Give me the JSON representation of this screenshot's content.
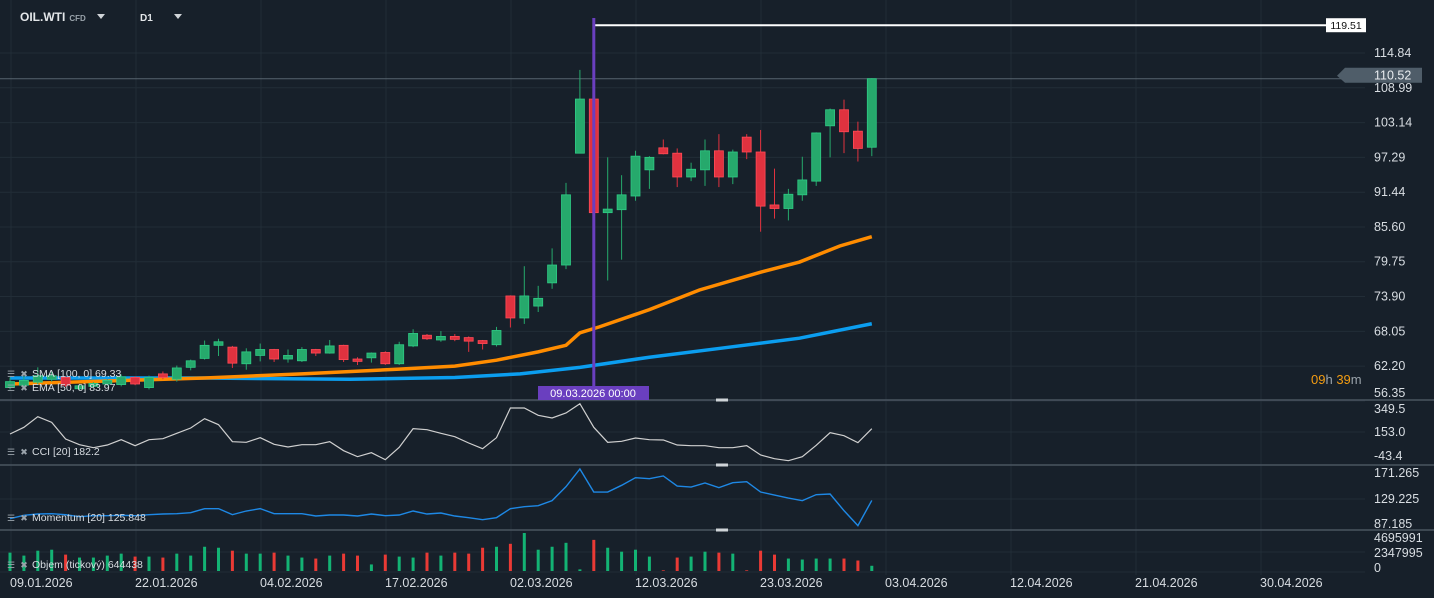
{
  "header": {
    "symbol": "OIL.WTI",
    "symbol_type": "CFD",
    "timeframe": "D1"
  },
  "colors": {
    "background": "#17202a",
    "up": "#26a96c",
    "down": "#e0323f",
    "ema": "#ff8c00",
    "sma": "#0b9ef0",
    "cci": "#d0d0d0",
    "momentum": "#1e88e5",
    "marker": "#6a3fbf"
  },
  "legends": {
    "sma": "SMA [100, 0] 69.33",
    "ema": "EMA [50, 0] 83.97",
    "cci": "CCI [20] 182.2",
    "momentum": "Momentum [20] 125.848",
    "volume": "Objem (tickový) 644438"
  },
  "countdown": {
    "hours": "09",
    "h": "h",
    "minutes": "39",
    "m": "m"
  },
  "marker": {
    "label": "09.03.2026 00:00",
    "bar": 42
  },
  "level_line": {
    "value": 119.51,
    "label": "119.51"
  },
  "last_price": {
    "value": 110.52,
    "label": "110.52"
  },
  "chart_data": [
    {
      "type": "candlestick",
      "price_ticks": [
        "114.84",
        "108.99",
        "103.14",
        "97.29",
        "91.44",
        "85.60",
        "79.75",
        "73.90",
        "68.05",
        "62.20",
        "56.35"
      ],
      "x_ticks": [
        "09.01.2026",
        "22.01.2026",
        "04.02.2026",
        "17.02.2026",
        "02.03.2026",
        "12.03.2026",
        "23.03.2026",
        "03.04.2026",
        "12.04.2026",
        "21.04.2026",
        "30.04.2026"
      ],
      "ylim": [
        56.35,
        119.51
      ],
      "ohlc": [
        [
          58.6,
          60.3,
          58.3,
          59.6
        ],
        [
          59.0,
          60.5,
          58.8,
          59.8
        ],
        [
          59.5,
          62.0,
          59.0,
          60.6
        ],
        [
          60.0,
          61.2,
          59.6,
          60.6
        ],
        [
          60.3,
          60.5,
          58.7,
          59.0
        ],
        [
          58.4,
          59.2,
          58.2,
          58.9
        ],
        [
          58.8,
          59.5,
          58.5,
          59.3
        ],
        [
          59.2,
          60.0,
          58.9,
          59.8
        ],
        [
          59.1,
          60.8,
          58.8,
          60.4
        ],
        [
          60.3,
          60.5,
          59.0,
          59.2
        ],
        [
          58.6,
          60.6,
          58.3,
          60.3
        ],
        [
          60.9,
          61.3,
          60.0,
          60.3
        ],
        [
          60.0,
          62.3,
          59.6,
          61.9
        ],
        [
          62.0,
          63.3,
          61.5,
          63.1
        ],
        [
          63.5,
          66.5,
          63.3,
          65.7
        ],
        [
          65.7,
          66.8,
          63.9,
          66.3
        ],
        [
          65.4,
          65.6,
          61.9,
          62.7
        ],
        [
          62.6,
          65.2,
          61.6,
          64.6
        ],
        [
          64.0,
          66.0,
          63.0,
          65.0
        ],
        [
          65.0,
          65.1,
          62.9,
          63.4
        ],
        [
          63.4,
          65.0,
          62.8,
          64.0
        ],
        [
          63.1,
          65.4,
          62.9,
          65.0
        ],
        [
          65.0,
          65.1,
          63.9,
          64.4
        ],
        [
          64.4,
          66.6,
          64.3,
          65.6
        ],
        [
          65.7,
          65.8,
          62.9,
          63.3
        ],
        [
          63.4,
          63.7,
          62.4,
          63.0
        ],
        [
          63.6,
          64.5,
          62.8,
          64.4
        ],
        [
          64.5,
          64.7,
          62.4,
          62.6
        ],
        [
          62.6,
          66.3,
          62.4,
          65.8
        ],
        [
          65.6,
          68.4,
          65.4,
          67.7
        ],
        [
          67.4,
          67.6,
          66.6,
          66.8
        ],
        [
          66.6,
          68.1,
          66.3,
          67.2
        ],
        [
          67.2,
          67.6,
          66.4,
          66.7
        ],
        [
          67.0,
          67.2,
          64.6,
          66.4
        ],
        [
          66.5,
          66.6,
          65.0,
          66.0
        ],
        [
          65.8,
          68.8,
          65.5,
          68.2
        ],
        [
          74.0,
          74.1,
          68.7,
          70.3
        ],
        [
          70.3,
          79.0,
          69.3,
          74.0
        ],
        [
          72.3,
          75.7,
          71.3,
          73.6
        ],
        [
          76.2,
          82.0,
          75.2,
          79.2
        ],
        [
          79.2,
          93.0,
          78.5,
          91.0
        ],
        [
          98.0,
          112.0,
          98.0,
          107.1
        ],
        [
          107.1,
          107.1,
          79.6,
          88.0
        ],
        [
          88.0,
          97.3,
          76.6,
          88.6
        ],
        [
          88.5,
          94.3,
          80.1,
          91.0
        ],
        [
          90.8,
          98.4,
          90.0,
          97.5
        ],
        [
          95.2,
          97.5,
          92.0,
          97.3
        ],
        [
          98.9,
          100.3,
          97.8,
          97.9
        ],
        [
          98.0,
          98.8,
          92.3,
          94.0
        ],
        [
          94.0,
          96.4,
          93.3,
          95.3
        ],
        [
          95.2,
          100.3,
          92.5,
          98.4
        ],
        [
          98.4,
          101.2,
          92.3,
          94.0
        ],
        [
          94.0,
          98.6,
          92.8,
          98.2
        ],
        [
          100.7,
          101.2,
          97.0,
          98.2
        ],
        [
          98.2,
          101.9,
          84.8,
          89.1
        ],
        [
          89.3,
          95.4,
          87.0,
          88.7
        ],
        [
          88.7,
          92.0,
          86.7,
          91.1
        ],
        [
          91.0,
          97.4,
          90.0,
          93.5
        ],
        [
          93.3,
          101.5,
          92.5,
          101.4
        ],
        [
          102.6,
          105.5,
          97.3,
          105.3
        ],
        [
          105.3,
          107.0,
          98.0,
          101.6
        ],
        [
          101.7,
          103.3,
          96.6,
          98.8
        ],
        [
          99.0,
          110.6,
          97.5,
          110.52
        ]
      ],
      "ema": [
        [
          0,
          59.2
        ],
        [
          14,
          60.2
        ],
        [
          21,
          60.9
        ],
        [
          28,
          61.7
        ],
        [
          32,
          62.2
        ],
        [
          35,
          63.2
        ],
        [
          38,
          64.6
        ],
        [
          40,
          65.7
        ],
        [
          41,
          67.8
        ],
        [
          42.4,
          68.8
        ],
        [
          46,
          71.7
        ],
        [
          49.6,
          75.0
        ],
        [
          54,
          78.0
        ],
        [
          56.8,
          79.7
        ],
        [
          59.7,
          82.4
        ],
        [
          62,
          83.97
        ]
      ],
      "sma": [
        [
          0,
          60.2
        ],
        [
          14,
          60.2
        ],
        [
          24.5,
          60.0
        ],
        [
          32,
          60.3
        ],
        [
          36.7,
          60.9
        ],
        [
          41,
          62.0
        ],
        [
          46,
          63.7
        ],
        [
          51.1,
          65.2
        ],
        [
          56.8,
          66.9
        ],
        [
          62,
          69.33
        ]
      ]
    },
    {
      "type": "line",
      "name": "CCI [20]",
      "ticks": [
        "349.5",
        "153.0",
        "-43.4"
      ],
      "ylim": [
        -43.4,
        349.5
      ],
      "values": [
        141.5,
        192.8,
        275,
        231.4,
        103,
        59.3,
        36.2,
        56.7,
        97.8,
        51.6,
        97.8,
        105.5,
        146.6,
        187.7,
        259.6,
        213.4,
        82.4,
        77.3,
        113.2,
        61.9,
        41.4,
        59.3,
        59.3,
        82.4,
        13.1,
        -33.1,
        -2.3,
        -56.2,
        38.8,
        182.6,
        174.9,
        146.6,
        121,
        72.2,
        28.5,
        113.2,
        341.8,
        341.8,
        285.3,
        264.8,
        303.3,
        375,
        192.8,
        77.3,
        85,
        110.7,
        97.8,
        95.3,
        56.7,
        51.6,
        51.6,
        36.2,
        36.2,
        51.6,
        -20.3,
        -48.5,
        -63.9,
        -33.1,
        54.2,
        151.8,
        128.7,
        74.7,
        182.2
      ]
    },
    {
      "type": "line",
      "name": "Momentum [20]",
      "ticks": [
        "171.265",
        "129.225",
        "87.185"
      ],
      "ylim": [
        87.185,
        171.265
      ],
      "values": [
        100.3,
        104.9,
        106.8,
        107.3,
        105.9,
        103.1,
        104.5,
        104.5,
        104.9,
        104.5,
        105.9,
        106.8,
        107.3,
        108.7,
        114.3,
        114.3,
        105.9,
        111.0,
        114.3,
        107.3,
        107.3,
        107.3,
        104.0,
        105.4,
        105.4,
        104.0,
        106.8,
        104.5,
        105.4,
        111.0,
        106.8,
        108.2,
        104.0,
        101.7,
        98.9,
        101.7,
        114.3,
        117.1,
        118.5,
        125.5,
        145.1,
        169.9,
        137.6,
        137.6,
        147.0,
        157.7,
        156.3,
        160.1,
        146.0,
        144.6,
        150.3,
        143.7,
        150.7,
        152.1,
        137.6,
        133.4,
        129.2,
        125.5,
        133.9,
        134.8,
        111.5,
        90.5,
        125.848
      ]
    },
    {
      "type": "bar",
      "name": "Objem (tickový)",
      "ticks": [
        "4695991",
        "2347995",
        "0"
      ],
      "ylim": [
        0,
        4695991
      ],
      "values": [
        2267000,
        1903000,
        2510000,
        2631000,
        2024000,
        1660000,
        1660000,
        1903000,
        2146000,
        1781000,
        1781000,
        1660000,
        2146000,
        1903000,
        2996000,
        2874000,
        2510000,
        2146000,
        2146000,
        2267000,
        1903000,
        1660000,
        1538000,
        1903000,
        2146000,
        1903000,
        810000,
        2024000,
        1781000,
        1660000,
        2267000,
        1903000,
        2267000,
        2146000,
        2874000,
        2996000,
        3360000,
        4695991,
        2631000,
        2996000,
        3482000,
        202000,
        3846000,
        2874000,
        2388000,
        2631000,
        1781000,
        81000,
        1660000,
        1781000,
        2388000,
        2267000,
        2146000,
        81000,
        2510000,
        2024000,
        1538000,
        1417000,
        1538000,
        1538000,
        1538000,
        1295000,
        644438
      ]
    }
  ]
}
